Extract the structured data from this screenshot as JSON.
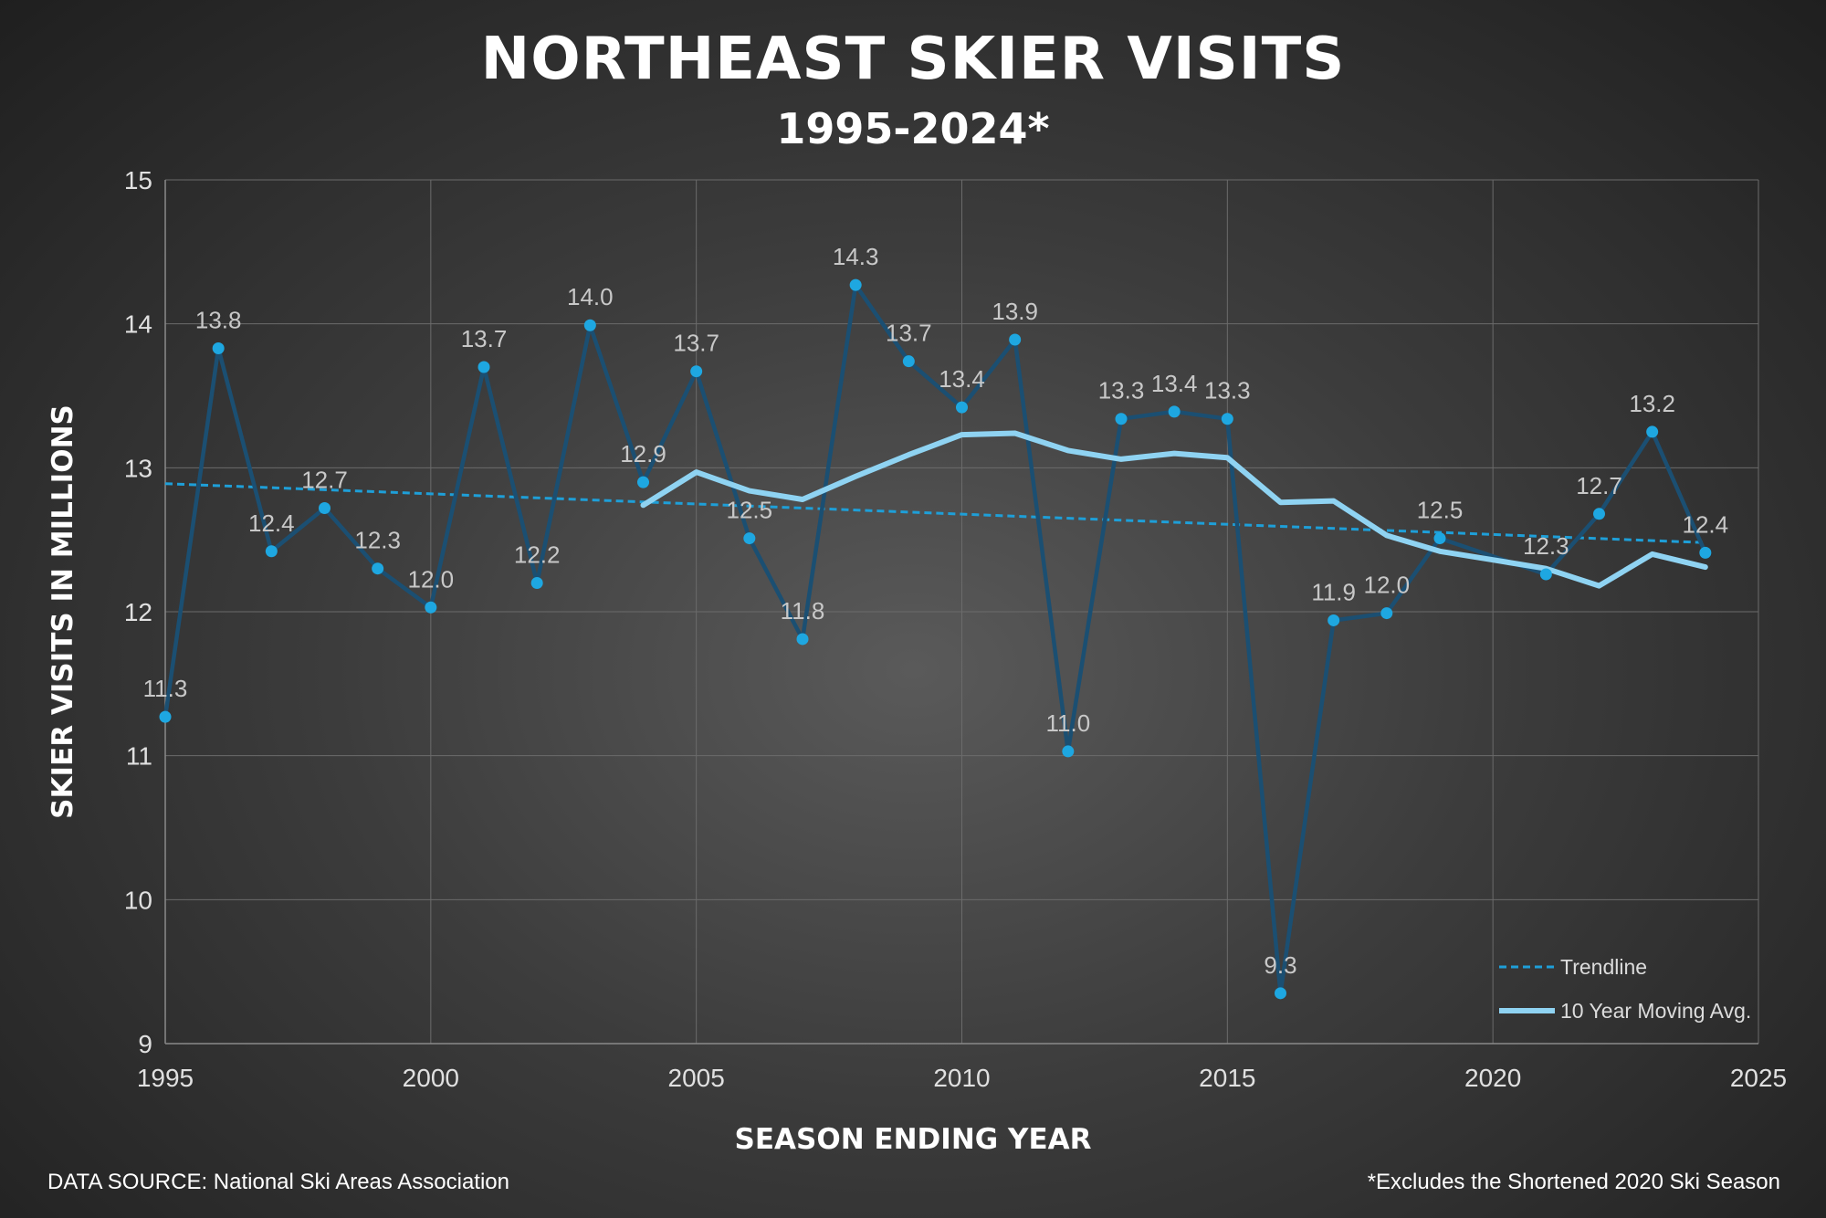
{
  "chart_data": {
    "type": "line",
    "title": "NORTHEAST SKIER VISITS",
    "subtitle": "1995-2024*",
    "xlabel": "SEASON ENDING YEAR",
    "ylabel": "SKIER VISITS IN MILLIONS",
    "xlim": [
      1995,
      2025
    ],
    "ylim": [
      9,
      15
    ],
    "xticks": [
      1995,
      2000,
      2005,
      2010,
      2015,
      2020,
      2025
    ],
    "yticks": [
      9,
      10,
      11,
      12,
      13,
      14,
      15
    ],
    "grid": true,
    "legend_position": "bottom-right",
    "colors": {
      "visits": "#1b4f72",
      "visits_marker": "#1ea7e1",
      "trendline": "#1e9fd8",
      "moving_avg": "#8fd3f2",
      "label": "#c8c8c8"
    },
    "series": [
      {
        "x": [
          1995,
          1996,
          1997,
          1998,
          1999,
          2000,
          2001,
          2002,
          2003,
          2004,
          2005,
          2006,
          2007,
          2008,
          2009,
          2010,
          2011,
          2012,
          2013,
          2014,
          2015,
          2016,
          2017,
          2018,
          2019,
          2021,
          2022,
          2023,
          2024
        ],
        "values": [
          11.27,
          13.83,
          12.42,
          12.72,
          12.3,
          12.03,
          13.7,
          12.2,
          13.99,
          12.9,
          13.67,
          12.51,
          11.81,
          14.27,
          13.74,
          13.42,
          13.89,
          11.03,
          13.34,
          13.39,
          13.34,
          9.35,
          11.94,
          11.99,
          12.51,
          12.26,
          12.68,
          13.25,
          12.41
        ],
        "labels": [
          "11.3",
          "13.8",
          "12.4",
          "12.7",
          "12.3",
          "12.0",
          "13.7",
          "12.2",
          "14.0",
          "12.9",
          "13.7",
          "12.5",
          "11.8",
          "14.3",
          "13.7",
          "13.4",
          "13.9",
          "11.0",
          "13.3",
          "13.4",
          "13.3",
          "9.3",
          "11.9",
          "12.0",
          "12.5",
          "12.3",
          "12.7",
          "13.2",
          "12.4"
        ]
      },
      {
        "name": "Trendline",
        "x": [
          1995,
          2024
        ],
        "values": [
          12.89,
          12.48
        ]
      },
      {
        "name": "10 Year Moving Avg.",
        "x": [
          2004,
          2005,
          2006,
          2007,
          2008,
          2009,
          2010,
          2011,
          2012,
          2013,
          2014,
          2015,
          2016,
          2017,
          2018,
          2019,
          2020,
          2021,
          2022,
          2023,
          2024
        ],
        "values": [
          12.74,
          12.97,
          12.84,
          12.78,
          12.94,
          13.09,
          13.23,
          13.24,
          13.12,
          13.06,
          13.1,
          13.07,
          12.76,
          12.77,
          12.53,
          12.42,
          12.36,
          12.3,
          12.18,
          12.4,
          12.31
        ]
      }
    ],
    "source": "DATA SOURCE: National Ski Areas Association",
    "footnote": "*Excludes the Shortened 2020 Ski Season"
  }
}
